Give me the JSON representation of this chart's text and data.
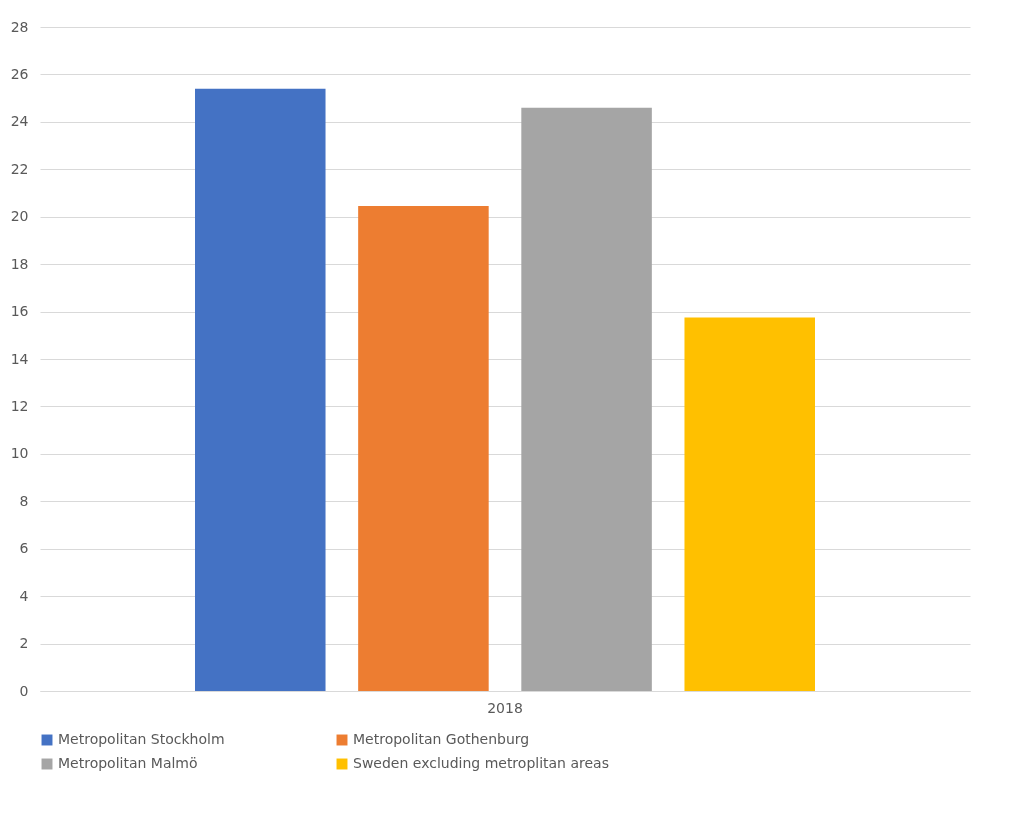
{
  "chart_data": {
    "type": "bar",
    "categories": [
      "2018"
    ],
    "series": [
      {
        "name": "Metropolitan Stockholm",
        "color": "#4472c4",
        "values": [
          25.4
        ]
      },
      {
        "name": "Metropolitan Gothenburg",
        "color": "#ed7d31",
        "values": [
          20.45
        ]
      },
      {
        "name": "Metropolitan Malmö",
        "color": "#a5a5a5",
        "values": [
          24.6
        ]
      },
      {
        "name": "Sweden excluding metroplitan areas",
        "color": "#ffc000",
        "values": [
          15.75
        ]
      }
    ],
    "ylim": [
      0,
      28
    ],
    "yticks": [
      0,
      2,
      4,
      6,
      8,
      10,
      12,
      14,
      16,
      18,
      20,
      22,
      24,
      26,
      28
    ],
    "grid": "y",
    "legend": "bottom"
  }
}
